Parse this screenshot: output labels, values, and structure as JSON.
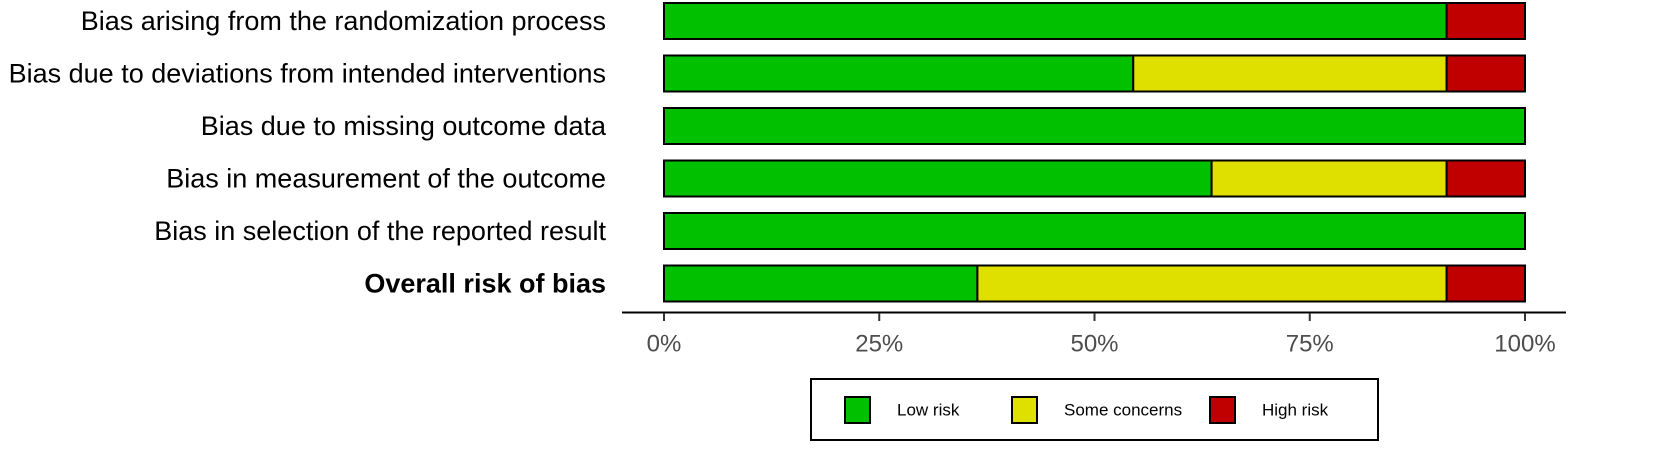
{
  "chart_data": {
    "type": "bar",
    "orientation": "horizontal",
    "stacked": true,
    "categories": [
      "Bias arising from the randomization process",
      "Bias due to deviations from intended interventions",
      "Bias due to missing outcome data",
      "Bias in measurement of the outcome",
      "Bias in selection of the reported result",
      "Overall risk of bias"
    ],
    "bold_categories": [
      "Overall risk of bias"
    ],
    "series": [
      {
        "name": "Low risk",
        "color": "#00c000",
        "values": [
          90.9,
          54.5,
          100,
          63.6,
          100,
          36.4
        ]
      },
      {
        "name": "Some concerns",
        "color": "#e0e000",
        "values": [
          0,
          36.4,
          0,
          27.3,
          0,
          54.5
        ]
      },
      {
        "name": "High risk",
        "color": "#c00000",
        "values": [
          9.1,
          9.1,
          0,
          9.1,
          0,
          9.1
        ]
      }
    ],
    "x_ticks": [
      "0%",
      "25%",
      "50%",
      "75%",
      "100%"
    ],
    "xlim": [
      0,
      100
    ],
    "xlabel": "",
    "ylabel": "",
    "title": "",
    "grid": false,
    "legend_position": "bottom"
  }
}
